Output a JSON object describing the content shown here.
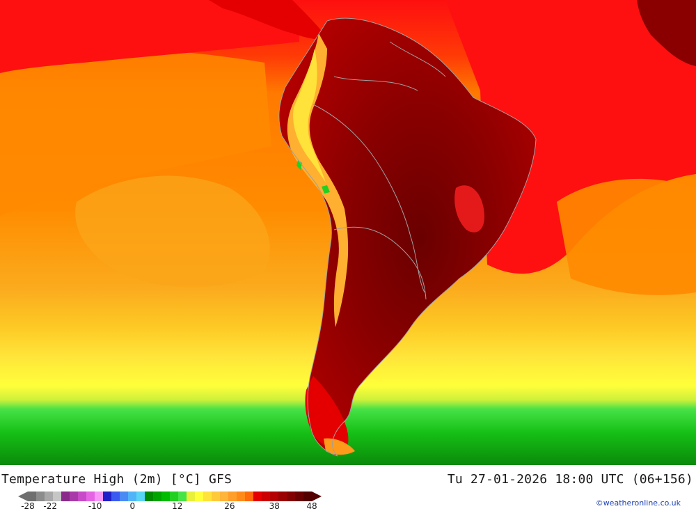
{
  "map": {
    "title": "Temperature High (2m) [°C] GFS",
    "valid_time": "Tu 27-01-2026 18:00 UTC (06+156)",
    "credit": "©weatheronline.co.uk",
    "units": "°C",
    "model": "GFS",
    "legend": {
      "tick_labels": [
        "-28",
        "-22",
        "-10",
        "0",
        "12",
        "26",
        "38",
        "48"
      ],
      "tick_values": [
        -28,
        -22,
        -10,
        0,
        12,
        26,
        38,
        48
      ],
      "range": [
        -28,
        48
      ],
      "colors": [
        "#6f6f6f",
        "#8c8c8c",
        "#a8a8a8",
        "#c6c6c6",
        "#8a2a8a",
        "#a83aa8",
        "#c84ac8",
        "#e464e4",
        "#f896f8",
        "#2020c8",
        "#3a5af0",
        "#4a8af4",
        "#52b4f8",
        "#5ad4f4",
        "#008a00",
        "#00a400",
        "#00bc00",
        "#22d022",
        "#46e246",
        "#e8f03a",
        "#ffff3a",
        "#ffe23a",
        "#ffca3a",
        "#ffb43a",
        "#ff9e2a",
        "#ff8a1a",
        "#ff6a0a",
        "#e40000",
        "#cc0000",
        "#b40000",
        "#9a0000",
        "#820000",
        "#6a0000",
        "#520000"
      ]
    },
    "palette": {
      "ocean_north": "#fe0f0f",
      "ocean_mid": "#ff7f00",
      "ocean_south": "#fdc800",
      "yellow_band": "#fefe32",
      "green_band": "#14d414",
      "dark_green": "#0a8a0a",
      "land_hot": "#9a0000",
      "land_hotter": "#6a0000",
      "andes": "#ffb030",
      "border": "#a0a0a0"
    }
  }
}
